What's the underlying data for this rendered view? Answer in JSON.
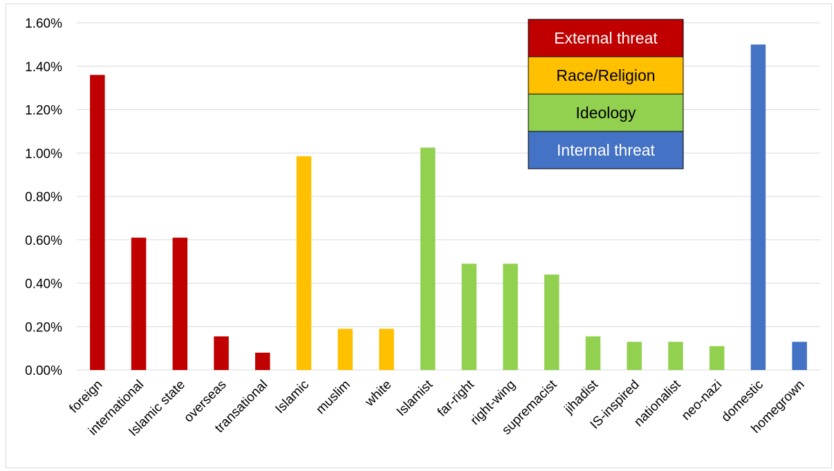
{
  "chart_data": {
    "type": "bar",
    "title": "",
    "xlabel": "",
    "ylabel": "",
    "ylim": [
      0,
      1.6
    ],
    "y_tick_format": "percent_2dp",
    "y_ticks": [
      "0.00%",
      "0.20%",
      "0.40%",
      "0.60%",
      "0.80%",
      "1.00%",
      "1.20%",
      "1.40%",
      "1.60%"
    ],
    "grid": true,
    "legend_position": "top-right",
    "groups": [
      {
        "name": "External threat",
        "color": "#c00000",
        "text_color": "#ffffff"
      },
      {
        "name": "Race/Religion",
        "color": "#ffc000",
        "text_color": "#000000"
      },
      {
        "name": "Ideology",
        "color": "#92d050",
        "text_color": "#000000"
      },
      {
        "name": "Internal threat",
        "color": "#4472c4",
        "text_color": "#ffffff"
      }
    ],
    "categories": [
      "foreign",
      "international",
      "Islamic state",
      "overseas",
      "transational",
      "Islamic",
      "muslim",
      "white",
      "Islamist",
      "far-right",
      "right-wing",
      "supremacist",
      "jihadist",
      "IS-inspired",
      "nationalist",
      "neo-nazi",
      "domestic",
      "homegrown"
    ],
    "values": [
      1.36,
      0.61,
      0.61,
      0.155,
      0.08,
      0.985,
      0.19,
      0.19,
      1.025,
      0.49,
      0.49,
      0.44,
      0.155,
      0.13,
      0.13,
      0.11,
      1.5,
      0.13
    ],
    "bar_group": [
      0,
      0,
      0,
      0,
      0,
      1,
      1,
      1,
      2,
      2,
      2,
      2,
      2,
      2,
      2,
      2,
      3,
      3
    ]
  }
}
